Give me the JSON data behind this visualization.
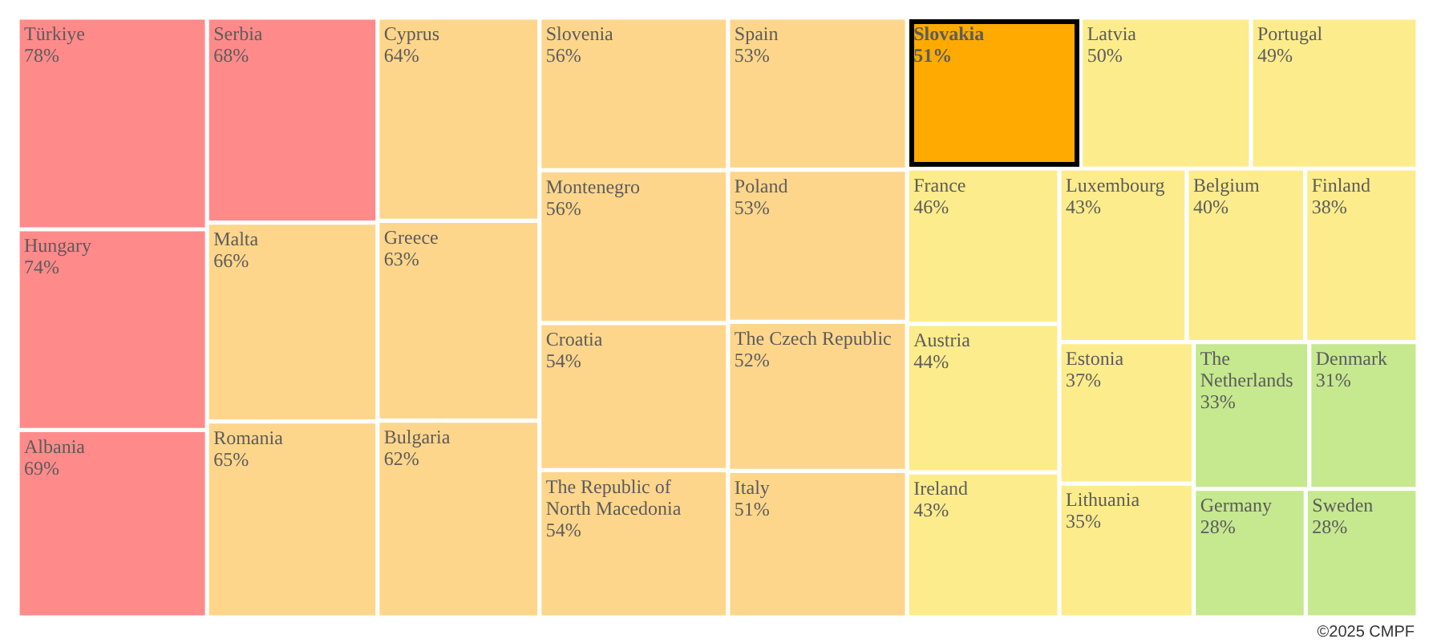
{
  "chart_data": {
    "type": "other",
    "categories": [
      "Türkiye",
      "Hungary",
      "Albania",
      "Serbia",
      "Malta",
      "Romania",
      "Cyprus",
      "Greece",
      "Bulgaria",
      "Slovenia",
      "Montenegro",
      "Croatia",
      "The Republic of North Macedonia",
      "Spain",
      "Poland",
      "The Czech Republic",
      "Italy",
      "Slovakia",
      "Latvia",
      "Portugal",
      "France",
      "Austria",
      "Ireland",
      "Luxembourg",
      "Belgium",
      "Finland",
      "Estonia",
      "Lithuania",
      "The Netherlands",
      "Denmark",
      "Germany",
      "Sweden"
    ],
    "values": [
      78,
      74,
      69,
      68,
      66,
      65,
      64,
      63,
      62,
      56,
      56,
      54,
      54,
      53,
      53,
      52,
      51,
      51,
      50,
      49,
      46,
      44,
      43,
      43,
      40,
      38,
      37,
      35,
      33,
      31,
      28,
      28
    ],
    "value_labels": [
      "78%",
      "74%",
      "69%",
      "68%",
      "66%",
      "65%",
      "64%",
      "63%",
      "62%",
      "56%",
      "56%",
      "54%",
      "54%",
      "53%",
      "53%",
      "52%",
      "51%",
      "51%",
      "50%",
      "49%",
      "46%",
      "44%",
      "43%",
      "43%",
      "40%",
      "38%",
      "37%",
      "35%",
      "33%",
      "31%",
      "28%",
      "28%"
    ],
    "colors": [
      "#ff8a8a",
      "#ff8a8a",
      "#ff8a8a",
      "#ff8a8a",
      "#fed68b",
      "#fed68b",
      "#fed68b",
      "#fed68b",
      "#fed68b",
      "#fed68b",
      "#fed68b",
      "#fed68b",
      "#fed68b",
      "#fed68b",
      "#fed68b",
      "#fed68b",
      "#fed68b",
      "#ffaa00",
      "#fdec8c",
      "#fdec8c",
      "#fdec8c",
      "#fdec8c",
      "#fdec8c",
      "#fdec8c",
      "#fdec8c",
      "#fdec8c",
      "#fdec8c",
      "#fdec8c",
      "#c6e88f",
      "#c6e88f",
      "#c6e88f",
      "#c6e88f"
    ],
    "annotations": [
      "©2025 CMPF"
    ]
  }
}
